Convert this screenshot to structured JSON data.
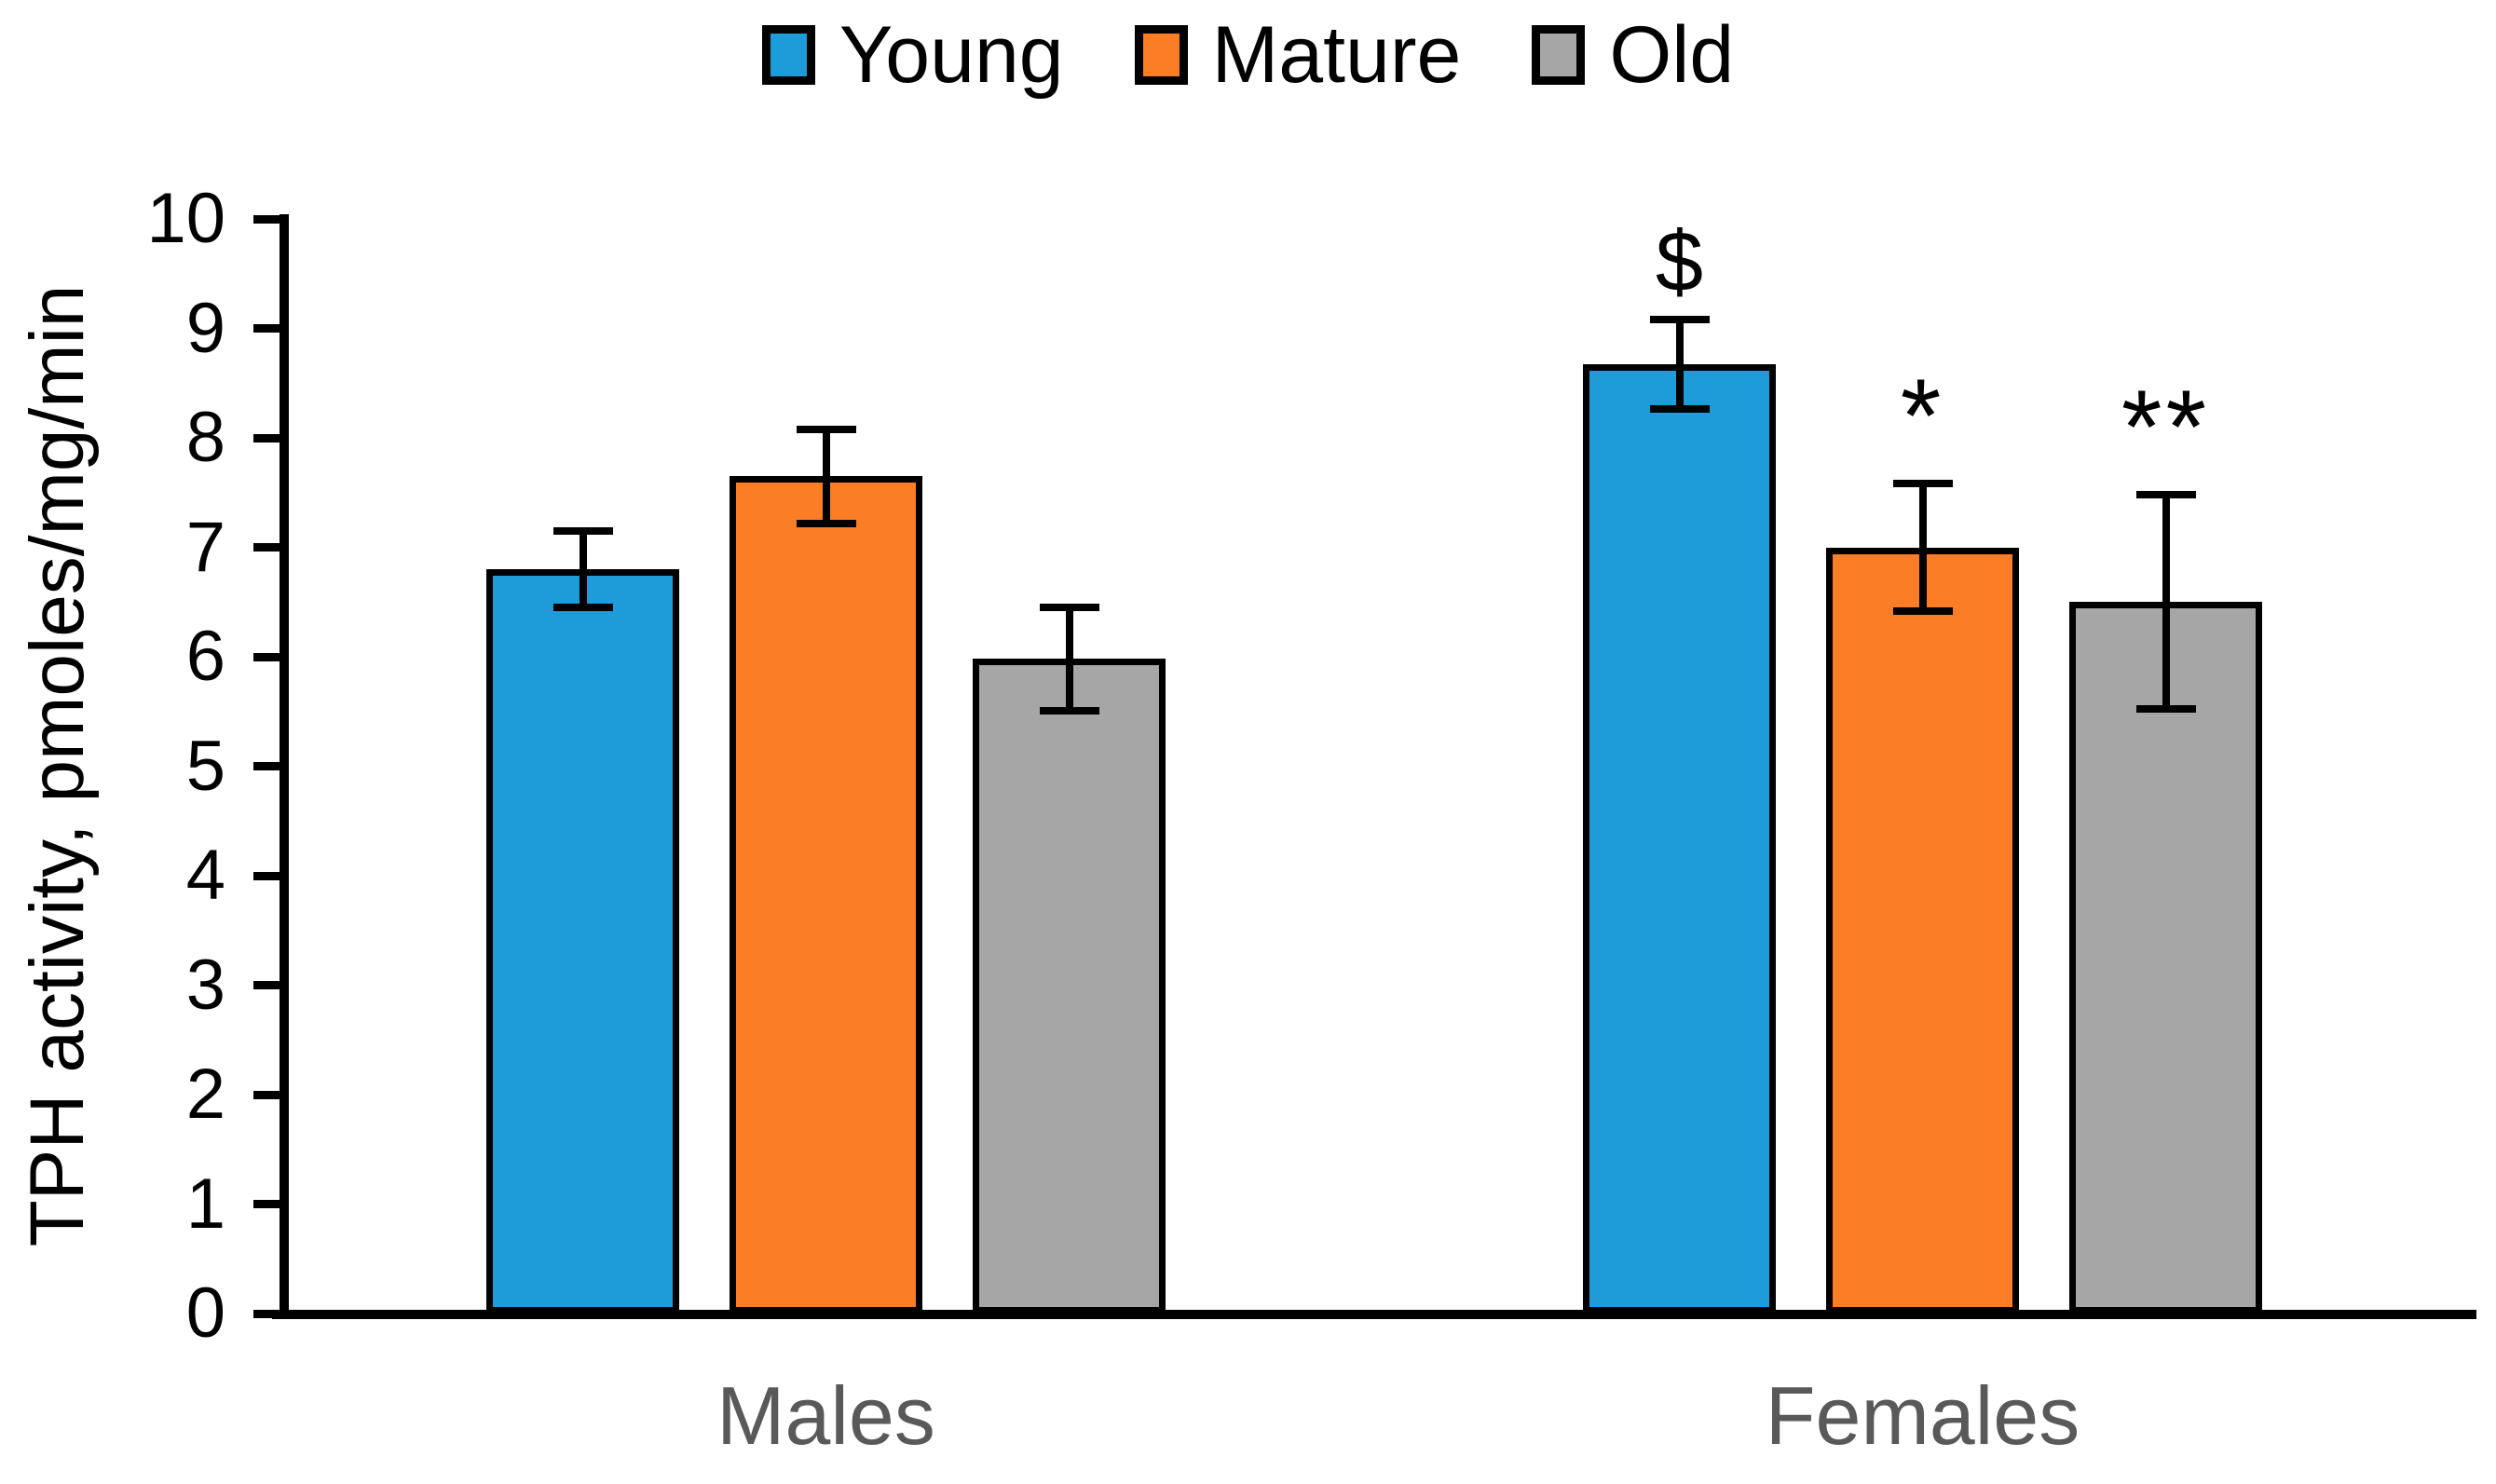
{
  "figure": {
    "background": "#ffffff",
    "axis_color": "#000000",
    "category_label_color": "#595959"
  },
  "chart_data": {
    "type": "bar",
    "title": "",
    "categories": [
      "Males",
      "Females"
    ],
    "series": [
      {
        "name": "Young",
        "color": "#1E9CD9",
        "values": [
          6.8,
          8.67
        ],
        "errors": [
          0.35,
          0.41
        ],
        "annotations": [
          "",
          "$"
        ]
      },
      {
        "name": "Mature",
        "color": "#FB7D25",
        "values": [
          7.65,
          7.0
        ],
        "errors": [
          0.43,
          0.58
        ],
        "annotations": [
          "",
          "*"
        ]
      },
      {
        "name": "Old",
        "color": "#A6A6A6",
        "values": [
          5.98,
          6.5
        ],
        "errors": [
          0.47,
          0.98
        ],
        "annotations": [
          "",
          "**"
        ]
      }
    ],
    "xlabel": "",
    "ylabel": "TPH activity, pmoles/mg/min",
    "ylim": [
      0,
      10
    ],
    "yticks": [
      0,
      1,
      2,
      3,
      4,
      5,
      6,
      7,
      8,
      9,
      10
    ],
    "grid": false,
    "legend_position": "top",
    "error_bars": true
  }
}
